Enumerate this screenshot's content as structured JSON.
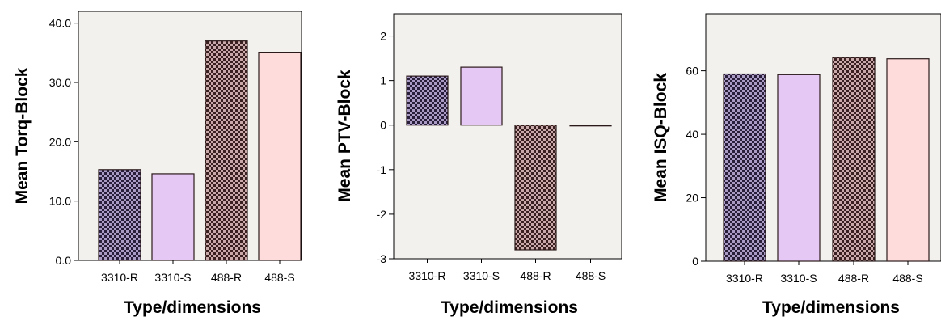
{
  "chart_data": [
    {
      "type": "bar",
      "categories": [
        "3310-R",
        "3310-S",
        "488-R",
        "488-S"
      ],
      "values": [
        15.3,
        14.6,
        37.0,
        35.1
      ],
      "xlabel": "Type/dimensions",
      "ylabel": "Mean Torq-Block",
      "ylim": [
        0,
        42
      ],
      "yticks": [
        0,
        10,
        20,
        30,
        40
      ],
      "yticklabels": [
        "0.0",
        "10.0",
        "20.0",
        "30.0",
        "40.0"
      ],
      "grid": false
    },
    {
      "type": "bar",
      "categories": [
        "3310-R",
        "3310-S",
        "488-R",
        "488-S"
      ],
      "values": [
        1.1,
        1.3,
        -2.8,
        0.0
      ],
      "xlabel": "Type/dimensions",
      "ylabel": "Mean PTV-Block",
      "ylim": [
        -3,
        2.5
      ],
      "yticks": [
        -3,
        -2,
        -1,
        0,
        1,
        2
      ],
      "yticklabels": [
        "-3",
        "-2",
        "-1",
        "0",
        "1",
        "2"
      ],
      "grid": false
    },
    {
      "type": "bar",
      "categories": [
        "3310-R",
        "3310-S",
        "488-R",
        "488-S"
      ],
      "values": [
        59,
        58.8,
        64.2,
        63.8
      ],
      "xlabel": "Type/dimensions",
      "ylabel": "Mean ISQ-Block",
      "ylim": [
        0,
        78
      ],
      "yticks": [
        0,
        20,
        40,
        60
      ],
      "yticklabels": [
        "0",
        "20",
        "40",
        "60"
      ],
      "grid": false
    }
  ],
  "style": {
    "plot_background": "#f2f1ee",
    "bar_outline": "#2b1a1a",
    "colors": {
      "check_purple_dark": "#2a1f3a",
      "check_purple_light": "#a99bc4",
      "check_brown_dark": "#3a2020",
      "check_brown_light": "#c9a9a9",
      "solid_lavender": "#e6c8f5",
      "solid_pink": "#ffdcdc"
    },
    "bar_fills": [
      "check-purple",
      "solid-lavender",
      "check-brown",
      "solid-pink"
    ]
  }
}
